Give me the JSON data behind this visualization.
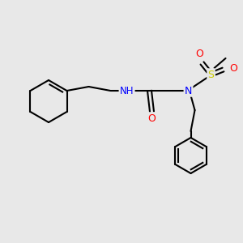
{
  "background_color": "#e8e8e8",
  "bond_color": "#000000",
  "atom_colors": {
    "N": "#0000ff",
    "O": "#ff0000",
    "S": "#cccc00",
    "H": "#888888",
    "C": "#000000"
  },
  "figsize": [
    3.0,
    3.0
  ],
  "dpi": 100
}
